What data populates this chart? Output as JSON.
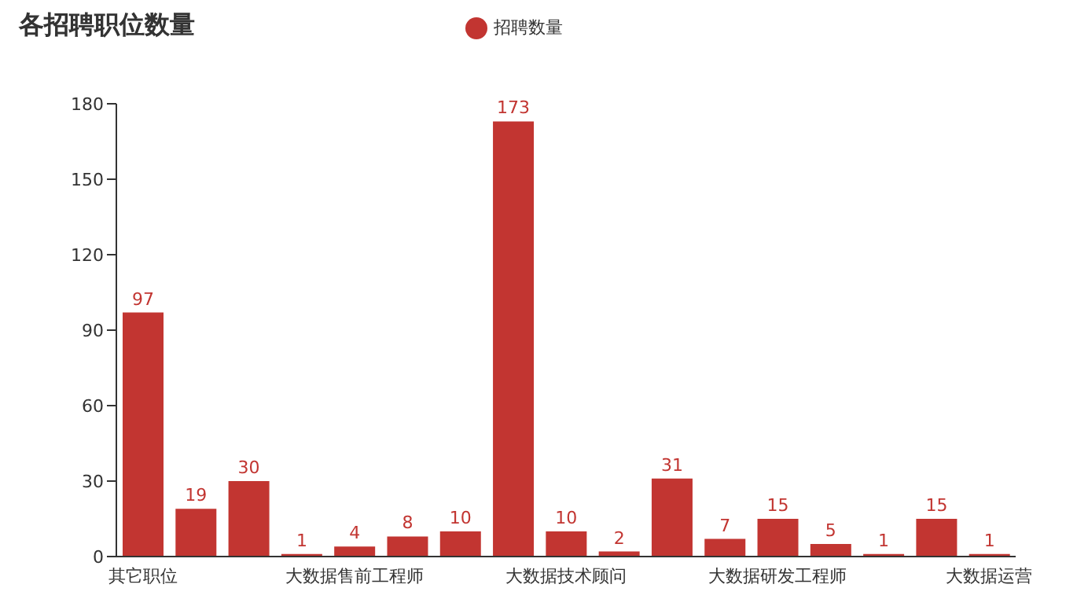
{
  "chart_data": {
    "type": "bar",
    "title": "各招聘职位数量",
    "categories": [
      "其它职位",
      null,
      null,
      null,
      "大数据售前工程师",
      null,
      null,
      null,
      "大数据技术顾问",
      null,
      null,
      null,
      "大数据研发工程师",
      null,
      null,
      null,
      "大数据运营"
    ],
    "series": [
      {
        "name": "招聘数量",
        "color": "#c23531",
        "values": [
          97,
          19,
          30,
          1,
          4,
          8,
          10,
          173,
          10,
          2,
          31,
          7,
          15,
          5,
          1,
          15,
          1
        ]
      }
    ],
    "ylim": [
      0,
      180
    ],
    "yticks": [
      0,
      30,
      60,
      90,
      120,
      150,
      180
    ],
    "grid": false,
    "legend": "top",
    "data_labels": true
  }
}
